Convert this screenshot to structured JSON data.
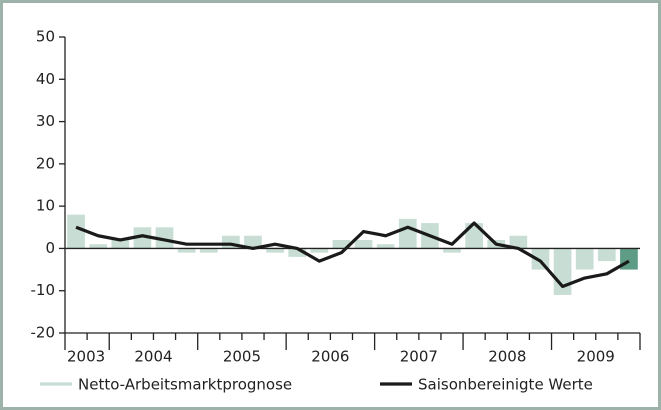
{
  "chart_data": {
    "type": "bar_line",
    "categories": [
      null,
      null,
      null,
      null,
      null,
      null,
      null,
      null,
      null,
      null,
      null,
      null,
      null,
      null,
      null,
      null,
      null,
      null,
      null,
      null,
      null,
      null,
      null,
      null,
      null,
      null
    ],
    "x_groups": [
      "2003",
      "2004",
      "2005",
      "2006",
      "2007",
      "2008",
      "2009"
    ],
    "series": [
      {
        "name": "Netto-Arbeitsmarktprognose",
        "type": "bar",
        "color": "#c8ded4",
        "colors": [
          "#c8ded4",
          "#c8ded4",
          "#c8ded4",
          "#c8ded4",
          "#c8ded4",
          "#c8ded4",
          "#c8ded4",
          "#c8ded4",
          "#c8ded4",
          "#c8ded4",
          "#c8ded4",
          "#c8ded4",
          "#c8ded4",
          "#c8ded4",
          "#c8ded4",
          "#c8ded4",
          "#c8ded4",
          "#c8ded4",
          "#c8ded4",
          "#c8ded4",
          "#c8ded4",
          "#c8ded4",
          "#c8ded4",
          "#c8ded4",
          "#c8ded4",
          "#5f9c86"
        ],
        "values": [
          8,
          1,
          2,
          5,
          5,
          -1,
          -1,
          3,
          3,
          -1,
          -2,
          -1,
          2,
          2,
          1,
          7,
          6,
          -1,
          6,
          2,
          3,
          -5,
          -11,
          -5,
          -3,
          -5
        ]
      },
      {
        "name": "Saisonbereinigte Werte",
        "type": "line",
        "color": "#1a1a1a",
        "values": [
          5,
          3,
          2,
          3,
          2,
          1,
          1,
          1,
          0,
          1,
          0,
          -3,
          -1,
          4,
          3,
          5,
          3,
          1,
          6,
          1,
          0,
          -3,
          -9,
          -7,
          -6,
          -3
        ]
      }
    ],
    "ylim": [
      -20,
      50
    ],
    "yticks": [
      -20,
      -10,
      0,
      10,
      20,
      30,
      40,
      50
    ]
  }
}
